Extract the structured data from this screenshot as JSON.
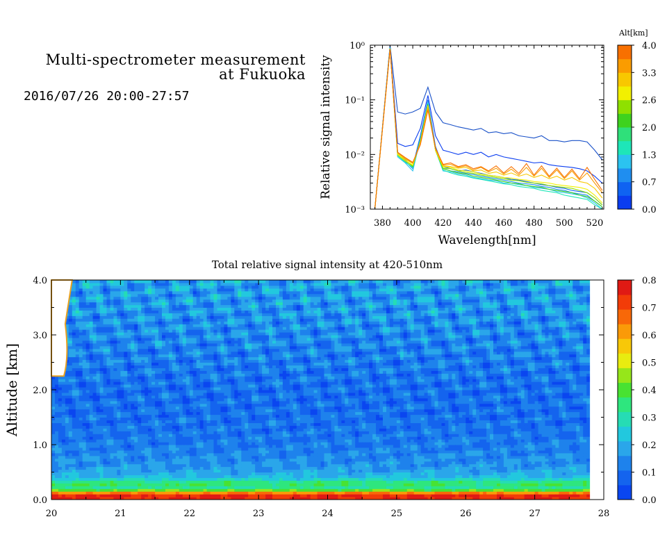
{
  "header": {
    "title_line1": "Multi-spectrometer measurement",
    "title_line2": "at Fukuoka",
    "date_range": "2016/07/26 20:00-27:57"
  },
  "colors": {
    "altitude_scale": [
      "#0a3df0",
      "#0f63f2",
      "#1f8ef0",
      "#2bc3f0",
      "#1ee6b8",
      "#2fe07a",
      "#3ed21e",
      "#8fe000",
      "#f2f000",
      "#f8c800",
      "#fa9c00",
      "#f87000"
    ],
    "intensity_scale": [
      "#0a46f0",
      "#1464ee",
      "#1e82ec",
      "#2aa6ea",
      "#22c8de",
      "#26dcb4",
      "#2ee67e",
      "#48e232",
      "#96e61a",
      "#e8ec10",
      "#f8c808",
      "#fa9a08",
      "#f86808",
      "#f23c08",
      "#e01a14"
    ],
    "reference_line": "#1850c8"
  },
  "chart_data": [
    {
      "type": "line",
      "title": "",
      "xlabel": "Wavelength[nm]",
      "ylabel": "Relative signal intensity",
      "yscale": "log",
      "xlim": [
        372,
        526
      ],
      "ylim": [
        0.001,
        1
      ],
      "x_ticks": [
        380,
        400,
        420,
        440,
        460,
        480,
        500,
        520
      ],
      "y_ticks": [
        {
          "value": 0.001,
          "label": "10⁻³"
        },
        {
          "value": 0.01,
          "label": "10⁻²"
        },
        {
          "value": 0.1,
          "label": "10⁻¹"
        },
        {
          "value": 1,
          "label": "10⁰"
        }
      ],
      "x": [
        375,
        385,
        390,
        395,
        400,
        405,
        410,
        415,
        420,
        425,
        430,
        435,
        440,
        445,
        450,
        455,
        460,
        465,
        470,
        475,
        480,
        485,
        490,
        495,
        500,
        505,
        510,
        515,
        520,
        525
      ],
      "series": [
        {
          "altitude_km": 0.0,
          "values": [
            0.001,
            1.0,
            0.06,
            0.055,
            0.06,
            0.07,
            0.17,
            0.06,
            0.038,
            0.035,
            0.032,
            0.03,
            0.028,
            0.03,
            0.025,
            0.026,
            0.024,
            0.025,
            0.022,
            0.021,
            0.02,
            0.022,
            0.018,
            0.018,
            0.017,
            0.018,
            0.018,
            0.017,
            0.012,
            0.008
          ]
        },
        {
          "altitude_km": 0.2,
          "values": [
            0.001,
            0.95,
            0.016,
            0.014,
            0.015,
            0.03,
            0.12,
            0.022,
            0.012,
            0.011,
            0.01,
            0.011,
            0.01,
            0.011,
            0.009,
            0.01,
            0.009,
            0.0085,
            0.008,
            0.0075,
            0.007,
            0.0072,
            0.0065,
            0.0062,
            0.006,
            0.0058,
            0.0055,
            0.005,
            0.004,
            0.003
          ]
        },
        {
          "altitude_km": 0.5,
          "values": [
            0.001,
            0.92,
            0.011,
            0.008,
            0.006,
            0.022,
            0.1,
            0.014,
            0.006,
            0.0055,
            0.005,
            0.0052,
            0.0048,
            0.0045,
            0.0042,
            0.004,
            0.0038,
            0.0035,
            0.0034,
            0.0032,
            0.003,
            0.0028,
            0.0027,
            0.0025,
            0.0024,
            0.0022,
            0.0021,
            0.002,
            0.0016,
            0.0012
          ]
        },
        {
          "altitude_km": 0.8,
          "values": [
            0.001,
            0.9,
            0.01,
            0.0075,
            0.0055,
            0.02,
            0.095,
            0.013,
            0.0055,
            0.005,
            0.0048,
            0.0045,
            0.0043,
            0.004,
            0.0038,
            0.0036,
            0.0034,
            0.0032,
            0.003,
            0.0029,
            0.0028,
            0.0026,
            0.0025,
            0.0023,
            0.0022,
            0.002,
            0.0019,
            0.0018,
            0.0014,
            0.0011
          ]
        },
        {
          "altitude_km": 1.2,
          "values": [
            0.001,
            0.9,
            0.009,
            0.007,
            0.005,
            0.019,
            0.09,
            0.012,
            0.005,
            0.0048,
            0.0044,
            0.0042,
            0.0038,
            0.0036,
            0.0034,
            0.0033,
            0.003,
            0.003,
            0.0028,
            0.0027,
            0.0025,
            0.0024,
            0.0023,
            0.0021,
            0.002,
            0.0019,
            0.0018,
            0.0016,
            0.0013,
            0.001
          ]
        },
        {
          "altitude_km": 1.6,
          "values": [
            0.001,
            0.88,
            0.0095,
            0.0072,
            0.0058,
            0.018,
            0.085,
            0.012,
            0.0052,
            0.0046,
            0.0042,
            0.004,
            0.0037,
            0.0035,
            0.0033,
            0.0031,
            0.0029,
            0.0028,
            0.0026,
            0.0025,
            0.0024,
            0.0022,
            0.0021,
            0.002,
            0.0018,
            0.0017,
            0.0016,
            0.0015,
            0.0012,
            0.001
          ]
        },
        {
          "altitude_km": 2.0,
          "values": [
            0.001,
            0.88,
            0.01,
            0.0078,
            0.006,
            0.018,
            0.082,
            0.012,
            0.0055,
            0.005,
            0.0046,
            0.0044,
            0.004,
            0.0038,
            0.0036,
            0.0034,
            0.0032,
            0.003,
            0.0029,
            0.0027,
            0.0026,
            0.0025,
            0.0023,
            0.0022,
            0.0021,
            0.002,
            0.0018,
            0.0017,
            0.0014,
            0.0011
          ]
        },
        {
          "altitude_km": 2.4,
          "values": [
            0.001,
            0.87,
            0.0098,
            0.0076,
            0.0062,
            0.017,
            0.08,
            0.0118,
            0.0056,
            0.0055,
            0.005,
            0.0047,
            0.0045,
            0.0042,
            0.004,
            0.0038,
            0.0036,
            0.0034,
            0.0033,
            0.0031,
            0.003,
            0.0029,
            0.0027,
            0.0026,
            0.0025,
            0.0024,
            0.0022,
            0.002,
            0.0016,
            0.0012
          ]
        },
        {
          "altitude_km": 2.8,
          "values": [
            0.001,
            0.86,
            0.01,
            0.0078,
            0.0064,
            0.017,
            0.078,
            0.012,
            0.006,
            0.0058,
            0.0052,
            0.005,
            0.0048,
            0.0044,
            0.0042,
            0.004,
            0.0038,
            0.0037,
            0.0035,
            0.0034,
            0.0032,
            0.0031,
            0.003,
            0.0028,
            0.0027,
            0.0026,
            0.0025,
            0.0023,
            0.0018,
            0.0013
          ]
        },
        {
          "altitude_km": 3.2,
          "values": [
            0.001,
            0.86,
            0.0105,
            0.0082,
            0.0068,
            0.016,
            0.075,
            0.0125,
            0.0062,
            0.006,
            0.0056,
            0.0058,
            0.005,
            0.0052,
            0.0045,
            0.0048,
            0.0042,
            0.0046,
            0.004,
            0.0044,
            0.0038,
            0.0042,
            0.0036,
            0.004,
            0.0034,
            0.0038,
            0.0032,
            0.003,
            0.0024,
            0.0016
          ]
        },
        {
          "altitude_km": 3.6,
          "values": [
            0.001,
            0.85,
            0.011,
            0.0085,
            0.007,
            0.016,
            0.07,
            0.013,
            0.0064,
            0.0066,
            0.0058,
            0.0062,
            0.0052,
            0.0058,
            0.0048,
            0.0056,
            0.0044,
            0.0054,
            0.0042,
            0.0058,
            0.004,
            0.0056,
            0.0038,
            0.0052,
            0.0036,
            0.005,
            0.0034,
            0.0046,
            0.003,
            0.002
          ]
        },
        {
          "altitude_km": 4.0,
          "values": [
            0.001,
            0.84,
            0.011,
            0.0088,
            0.0072,
            0.015,
            0.065,
            0.013,
            0.0066,
            0.007,
            0.006,
            0.0065,
            0.0055,
            0.006,
            0.005,
            0.0062,
            0.0046,
            0.006,
            0.0045,
            0.0068,
            0.0042,
            0.0062,
            0.004,
            0.0056,
            0.0038,
            0.0054,
            0.0036,
            0.0058,
            0.0035,
            0.0022
          ]
        }
      ],
      "colorbar": {
        "label": "Alt[km]",
        "range": [
          0.0,
          4.0
        ],
        "tick_labels": [
          "4.0",
          "3.3",
          "2.6",
          "2.0",
          "1.3",
          "0.7",
          "0.0"
        ]
      }
    },
    {
      "type": "heatmap",
      "title": "Total relative signal intensity at 420-510nm",
      "xlabel": "",
      "ylabel": "Altitude [km]",
      "xlim": [
        20,
        28
      ],
      "ylim": [
        0.0,
        4.0
      ],
      "x_ticks": [
        "20",
        "21",
        "22",
        "23",
        "24",
        "25",
        "26",
        "27",
        "28"
      ],
      "y_ticks": [
        "0.0",
        "1.0",
        "2.0",
        "3.0",
        "4.0"
      ],
      "data_x_range": [
        20.0,
        27.8
      ],
      "altitude_profile": [
        {
          "altitude_km": 0.1,
          "intensity": 0.75
        },
        {
          "altitude_km": 0.2,
          "intensity": 0.3
        },
        {
          "altitude_km": 0.3,
          "intensity": 0.38
        },
        {
          "altitude_km": 0.4,
          "intensity": 0.22
        },
        {
          "altitude_km": 0.6,
          "intensity": 0.16
        },
        {
          "altitude_km": 1.0,
          "intensity": 0.12
        },
        {
          "altitude_km": 1.5,
          "intensity": 0.1
        },
        {
          "altitude_km": 2.0,
          "intensity": 0.1
        },
        {
          "altitude_km": 2.5,
          "intensity": 0.12
        },
        {
          "altitude_km": 3.0,
          "intensity": 0.14
        },
        {
          "altitude_km": 3.5,
          "intensity": 0.16
        },
        {
          "altitude_km": 4.0,
          "intensity": 0.18
        }
      ],
      "colorbar": {
        "range": [
          0.0,
          0.8
        ],
        "tick_labels": [
          "0.8",
          "0.7",
          "0.6",
          "0.5",
          "0.4",
          "0.3",
          "0.2",
          "0.1",
          "0.0"
        ]
      }
    }
  ]
}
